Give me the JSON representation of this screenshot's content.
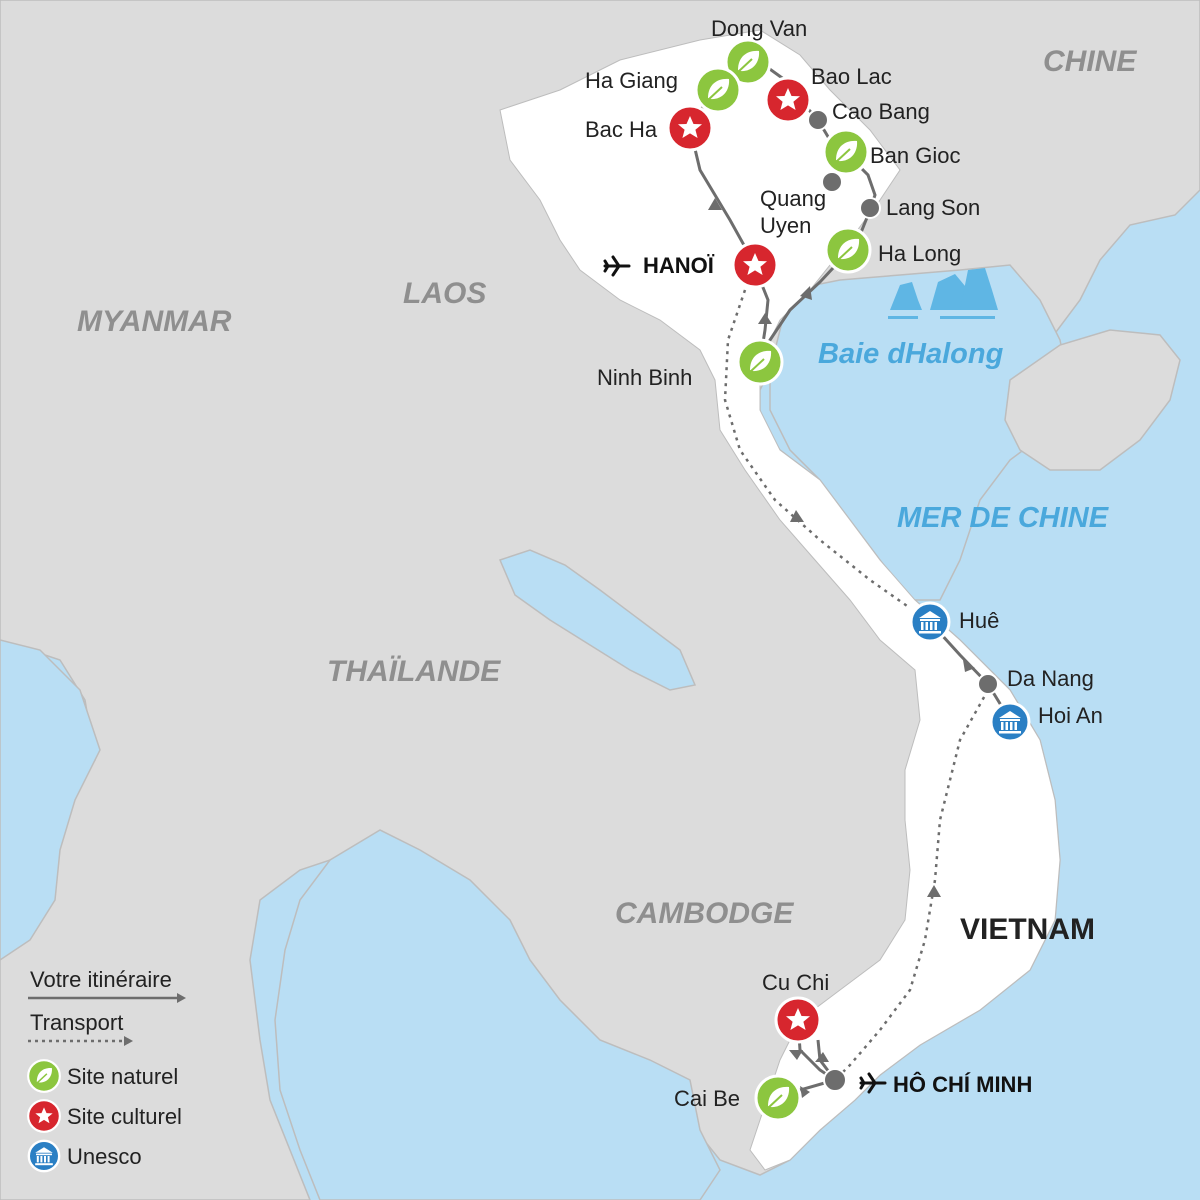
{
  "countries": {
    "chine": "CHINE",
    "laos": "LAOS",
    "myanmar": "MYANMAR",
    "thailande": "THAÏLANDE",
    "cambodge": "CAMBODGE",
    "vietnam": "VIETNAM"
  },
  "seas": {
    "baie": "Baie dHalong",
    "mer": "MER DE CHINE"
  },
  "cities": {
    "dong_van": "Dong Van",
    "ha_giang": "Ha Giang",
    "bao_lac": "Bao Lac",
    "bac_ha": "Bac Ha",
    "cao_bang": "Cao Bang",
    "ban_gioc": "Ban Gioc",
    "quang_uyen_1": "Quang",
    "quang_uyen_2": "Uyen",
    "lang_son": "Lang Son",
    "ha_long": "Ha Long",
    "hanoi": "HANOÏ",
    "ninh_binh": "Ninh Binh",
    "hue": "Huê",
    "da_nang": "Da Nang",
    "hoi_an": "Hoi An",
    "cu_chi": "Cu Chi",
    "cai_be": "Cai Be",
    "ho_chi_minh": "HÔ CHÍ MINH"
  },
  "legend": {
    "itineraire": "Votre itinéraire",
    "transport": "Transport",
    "naturel": "Site naturel",
    "culturel": "Site culturel",
    "unesco": "Unesco"
  },
  "colors": {
    "sea": "#b9def4",
    "land": "#dcdcdc",
    "vietnam": "#ffffff",
    "natural": "#8cc63f",
    "cultural": "#d7262e",
    "unesco": "#2a7fc4",
    "route": "#6d6d6d"
  },
  "icons": [
    "leaf-icon",
    "star-icon",
    "temple-icon",
    "plane-icon",
    "stop-dot-icon"
  ]
}
